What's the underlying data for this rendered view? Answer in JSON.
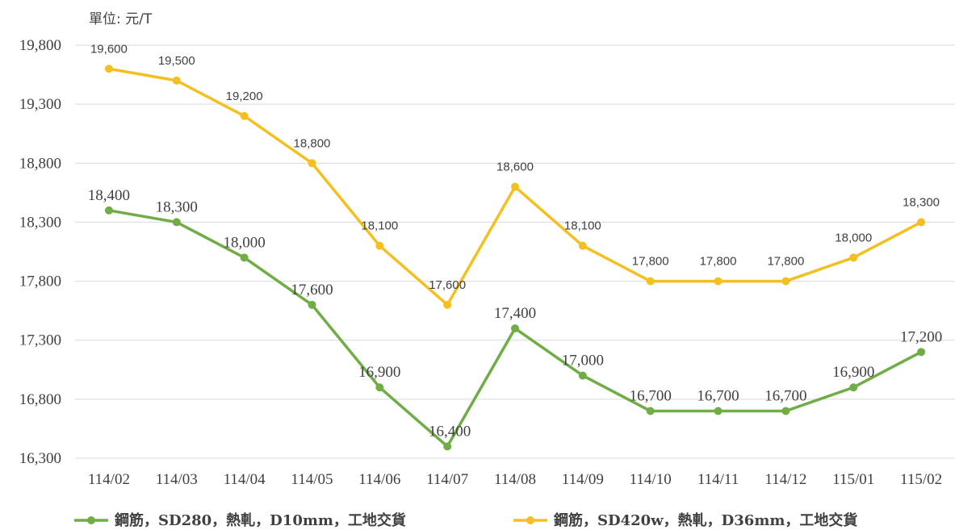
{
  "chart_data": {
    "type": "line",
    "unit_label": "單位: 元/T",
    "categories": [
      "114/02",
      "114/03",
      "114/04",
      "114/05",
      "114/06",
      "114/07",
      "114/08",
      "114/09",
      "114/10",
      "114/11",
      "114/12",
      "115/01",
      "115/02"
    ],
    "y_ticks": [
      "16,300",
      "16,800",
      "17,300",
      "17,800",
      "18,300",
      "18,800",
      "19,300",
      "19,800"
    ],
    "ylim": [
      16300,
      19800
    ],
    "y_step": 500,
    "grid": "horizontal",
    "legend_position": "bottom",
    "series": [
      {
        "name": "鋼筋，SD280，熱軋，D10mm，工地交貨",
        "color": "#70AD47",
        "values": [
          18400,
          18300,
          18000,
          17600,
          16900,
          16400,
          17400,
          17000,
          16700,
          16700,
          16700,
          16900,
          17200
        ],
        "labels": [
          "18,400",
          "18,300",
          "18,000",
          "17,600",
          "16,900",
          "16,400",
          "17,400",
          "17,000",
          "16,700",
          "16,700",
          "16,700",
          "16,900",
          "17,200"
        ]
      },
      {
        "name": "鋼筋，SD420w，熱軋，D36mm，工地交貨",
        "color": "#F4C021",
        "values": [
          19600,
          19500,
          19200,
          18800,
          18100,
          17600,
          18600,
          18100,
          17800,
          17800,
          17800,
          18000,
          18300
        ],
        "labels": [
          "19,600",
          "19,500",
          "19,200",
          "18,800",
          "18,100",
          "17,600",
          "18,600",
          "18,100",
          "17,800",
          "17,800",
          "17,800",
          "18,000",
          "18,300"
        ]
      }
    ]
  }
}
